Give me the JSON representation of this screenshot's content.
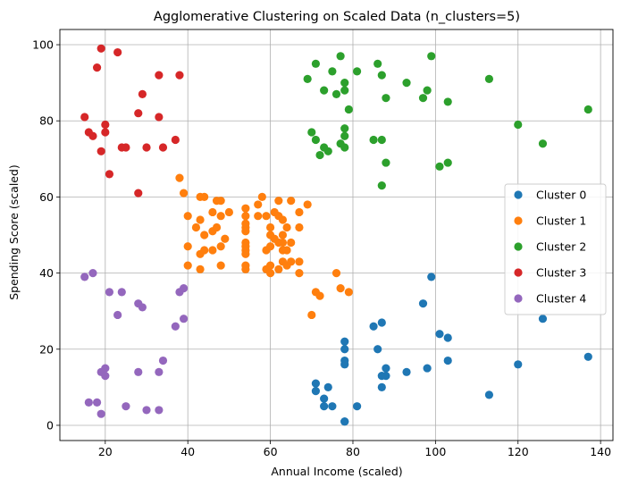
{
  "chart_data": {
    "type": "scatter",
    "title": "Agglomerative Clustering on Scaled Data (n_clusters=5)",
    "xlabel": "Annual Income (scaled)",
    "ylabel": "Spending Score (scaled)",
    "xlim": [
      9,
      143
    ],
    "ylim": [
      -4,
      104
    ],
    "xticks": [
      20,
      40,
      60,
      80,
      100,
      120,
      140
    ],
    "yticks": [
      0,
      20,
      40,
      60,
      80,
      100
    ],
    "grid": true,
    "legend_position": "center-right",
    "series": [
      {
        "name": "Cluster 0",
        "color": "#1f77b4",
        "points": [
          [
            71,
            11
          ],
          [
            71,
            9
          ],
          [
            73,
            5
          ],
          [
            73,
            7
          ],
          [
            74,
            10
          ],
          [
            75,
            5
          ],
          [
            78,
            1
          ],
          [
            78,
            1
          ],
          [
            78,
            16
          ],
          [
            78,
            17
          ],
          [
            78,
            20
          ],
          [
            78,
            22
          ],
          [
            81,
            5
          ],
          [
            85,
            26
          ],
          [
            86,
            20
          ],
          [
            87,
            27
          ],
          [
            87,
            13
          ],
          [
            87,
            10
          ],
          [
            88,
            13
          ],
          [
            88,
            15
          ],
          [
            93,
            14
          ],
          [
            97,
            32
          ],
          [
            98,
            15
          ],
          [
            99,
            39
          ],
          [
            101,
            24
          ],
          [
            103,
            17
          ],
          [
            103,
            23
          ],
          [
            113,
            8
          ],
          [
            120,
            16
          ],
          [
            126,
            28
          ],
          [
            137,
            18
          ]
        ]
      },
      {
        "name": "Cluster 1",
        "color": "#ff7f0e",
        "points": [
          [
            38,
            65
          ],
          [
            39,
            61
          ],
          [
            40,
            55
          ],
          [
            40,
            47
          ],
          [
            40,
            42
          ],
          [
            42,
            52
          ],
          [
            43,
            60
          ],
          [
            43,
            54
          ],
          [
            43,
            45
          ],
          [
            43,
            41
          ],
          [
            44,
            60
          ],
          [
            44,
            50
          ],
          [
            44,
            46
          ],
          [
            46,
            51
          ],
          [
            46,
            46
          ],
          [
            46,
            56
          ],
          [
            47,
            52
          ],
          [
            47,
            59
          ],
          [
            48,
            59
          ],
          [
            48,
            47
          ],
          [
            48,
            55
          ],
          [
            48,
            42
          ],
          [
            49,
            49
          ],
          [
            50,
            56
          ],
          [
            54,
            53
          ],
          [
            54,
            52
          ],
          [
            54,
            51
          ],
          [
            54,
            48
          ],
          [
            54,
            55
          ],
          [
            54,
            47
          ],
          [
            54,
            57
          ],
          [
            54,
            46
          ],
          [
            54,
            45
          ],
          [
            54,
            42
          ],
          [
            54,
            41
          ],
          [
            57,
            58
          ],
          [
            57,
            55
          ],
          [
            58,
            60
          ],
          [
            59,
            55
          ],
          [
            59,
            46
          ],
          [
            59,
            41
          ],
          [
            60,
            52
          ],
          [
            60,
            47
          ],
          [
            60,
            50
          ],
          [
            60,
            42
          ],
          [
            60,
            40
          ],
          [
            61,
            49
          ],
          [
            61,
            56
          ],
          [
            62,
            41
          ],
          [
            62,
            48
          ],
          [
            62,
            55
          ],
          [
            62,
            59
          ],
          [
            63,
            50
          ],
          [
            63,
            43
          ],
          [
            63,
            46
          ],
          [
            63,
            54
          ],
          [
            63,
            48
          ],
          [
            64,
            52
          ],
          [
            64,
            42
          ],
          [
            64,
            46
          ],
          [
            65,
            59
          ],
          [
            65,
            48
          ],
          [
            65,
            43
          ],
          [
            67,
            56
          ],
          [
            67,
            43
          ],
          [
            67,
            52
          ],
          [
            67,
            40
          ],
          [
            69,
            58
          ],
          [
            70,
            29
          ],
          [
            71,
            35
          ],
          [
            72,
            34
          ],
          [
            76,
            40
          ],
          [
            77,
            36
          ],
          [
            79,
            35
          ]
        ]
      },
      {
        "name": "Cluster 2",
        "color": "#2ca02c",
        "points": [
          [
            69,
            91
          ],
          [
            70,
            77
          ],
          [
            71,
            95
          ],
          [
            71,
            75
          ],
          [
            72,
            71
          ],
          [
            73,
            88
          ],
          [
            73,
            73
          ],
          [
            74,
            72
          ],
          [
            75,
            93
          ],
          [
            76,
            87
          ],
          [
            77,
            97
          ],
          [
            77,
            74
          ],
          [
            78,
            90
          ],
          [
            78,
            88
          ],
          [
            78,
            76
          ],
          [
            78,
            78
          ],
          [
            78,
            73
          ],
          [
            79,
            83
          ],
          [
            81,
            93
          ],
          [
            85,
            75
          ],
          [
            86,
            95
          ],
          [
            87,
            63
          ],
          [
            87,
            75
          ],
          [
            87,
            92
          ],
          [
            88,
            86
          ],
          [
            88,
            69
          ],
          [
            93,
            90
          ],
          [
            97,
            86
          ],
          [
            98,
            88
          ],
          [
            99,
            97
          ],
          [
            101,
            68
          ],
          [
            103,
            85
          ],
          [
            103,
            69
          ],
          [
            113,
            91
          ],
          [
            120,
            79
          ],
          [
            126,
            74
          ],
          [
            137,
            83
          ]
        ]
      },
      {
        "name": "Cluster 3",
        "color": "#d62728",
        "points": [
          [
            15,
            81
          ],
          [
            16,
            77
          ],
          [
            17,
            76
          ],
          [
            18,
            94
          ],
          [
            19,
            72
          ],
          [
            19,
            99
          ],
          [
            20,
            77
          ],
          [
            20,
            79
          ],
          [
            21,
            66
          ],
          [
            23,
            98
          ],
          [
            24,
            73
          ],
          [
            25,
            73
          ],
          [
            28,
            82
          ],
          [
            28,
            61
          ],
          [
            29,
            87
          ],
          [
            30,
            73
          ],
          [
            33,
            92
          ],
          [
            33,
            81
          ],
          [
            34,
            73
          ],
          [
            37,
            75
          ],
          [
            38,
            92
          ]
        ]
      },
      {
        "name": "Cluster 4",
        "color": "#9467bd",
        "points": [
          [
            15,
            39
          ],
          [
            16,
            6
          ],
          [
            17,
            40
          ],
          [
            18,
            6
          ],
          [
            19,
            3
          ],
          [
            19,
            14
          ],
          [
            20,
            15
          ],
          [
            20,
            13
          ],
          [
            21,
            35
          ],
          [
            23,
            29
          ],
          [
            24,
            35
          ],
          [
            25,
            5
          ],
          [
            28,
            14
          ],
          [
            28,
            32
          ],
          [
            29,
            31
          ],
          [
            30,
            4
          ],
          [
            33,
            4
          ],
          [
            33,
            14
          ],
          [
            34,
            17
          ],
          [
            37,
            26
          ],
          [
            38,
            35
          ],
          [
            39,
            36
          ],
          [
            39,
            28
          ]
        ]
      }
    ]
  }
}
